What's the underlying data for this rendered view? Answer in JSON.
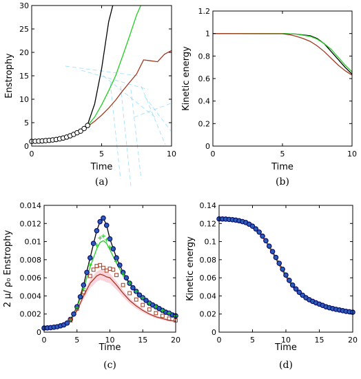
{
  "colors": {
    "black": "#000000",
    "green": "#22cc22",
    "brown": "#a0391f",
    "olive": "#8a6a00",
    "navy": "#0a0a6e",
    "blue_fill": "#2a5fb8",
    "pink_band": "#f4a0b4",
    "cyan_artifact": "#66ccff"
  },
  "chart_data": [
    {
      "id": "a",
      "type": "line",
      "panel_label": "(a)",
      "xlabel": "Time",
      "ylabel": "Enstrophy",
      "xlim": [
        0,
        10
      ],
      "ylim": [
        0,
        30
      ],
      "xticks": [
        "0",
        "5",
        "10"
      ],
      "yticks": [
        "0",
        "5",
        "10",
        "15",
        "20",
        "25",
        "30"
      ],
      "grid": false,
      "legend": "none",
      "series": [
        {
          "color": "black",
          "x": [
            0,
            1,
            2,
            3,
            3.5,
            4,
            4.5,
            5,
            5.5,
            5.8
          ],
          "y": [
            1.0,
            1.2,
            1.6,
            2.5,
            3.2,
            4.6,
            9.0,
            16.5,
            26.5,
            30.0
          ]
        },
        {
          "color": "green",
          "x": [
            0,
            1,
            2,
            3,
            3.5,
            4,
            4.5,
            5,
            5.5,
            6,
            6.5,
            7,
            7.5,
            7.8
          ],
          "y": [
            1.0,
            1.2,
            1.6,
            2.5,
            3.2,
            4.4,
            6.2,
            8.8,
            11.8,
            15.0,
            19.2,
            23.5,
            28.0,
            30.0
          ]
        },
        {
          "color": "brown",
          "x": [
            0,
            1,
            2,
            3,
            3.5,
            4,
            4.5,
            5,
            5.5,
            6,
            6.5,
            7,
            7.5,
            8,
            8.5,
            9,
            9.5,
            10
          ],
          "y": [
            1.0,
            1.2,
            1.6,
            2.5,
            3.2,
            4.2,
            5.3,
            6.6,
            8.1,
            9.8,
            11.8,
            13.6,
            15.4,
            18.4,
            18.2,
            18.0,
            19.6,
            20.4
          ]
        }
      ],
      "markers": {
        "style": "open-circle",
        "color": "black",
        "x": [
          0,
          0.25,
          0.5,
          0.75,
          1.0,
          1.25,
          1.5,
          1.75,
          2.0,
          2.25,
          2.5,
          2.75,
          3.0,
          3.25,
          3.5,
          3.75,
          4.0
        ],
        "y": [
          1.0,
          1.03,
          1.06,
          1.1,
          1.16,
          1.23,
          1.31,
          1.41,
          1.55,
          1.72,
          1.93,
          2.2,
          2.5,
          2.85,
          3.2,
          3.75,
          4.4
        ]
      }
    },
    {
      "id": "b",
      "type": "line",
      "panel_label": "(b)",
      "xlabel": "Time",
      "ylabel": "Kinetic energy",
      "xlim": [
        0,
        10
      ],
      "ylim": [
        0,
        1.2
      ],
      "xticks": [
        "0",
        "5",
        "10"
      ],
      "yticks": [
        "0",
        "0.2",
        "0.4",
        "0.6",
        "0.8",
        "1",
        "1.2"
      ],
      "grid": false,
      "legend": "none",
      "series": [
        {
          "color": "black",
          "x": [
            0,
            5,
            6,
            7,
            7.5,
            8,
            8.5,
            9,
            9.5,
            10
          ],
          "y": [
            1.0,
            1.0,
            0.995,
            0.98,
            0.955,
            0.91,
            0.84,
            0.77,
            0.7,
            0.64
          ]
        },
        {
          "color": "green",
          "x": [
            0,
            5,
            6,
            7,
            7.5,
            8,
            8.5,
            9,
            9.5,
            10
          ],
          "y": [
            1.0,
            1.0,
            0.995,
            0.975,
            0.95,
            0.91,
            0.86,
            0.79,
            0.72,
            0.66
          ]
        },
        {
          "color": "brown",
          "x": [
            0,
            5,
            5.5,
            6,
            6.5,
            7,
            7.5,
            8,
            8.5,
            9,
            9.5,
            10
          ],
          "y": [
            1.0,
            0.998,
            0.99,
            0.975,
            0.955,
            0.93,
            0.89,
            0.84,
            0.78,
            0.72,
            0.67,
            0.63
          ]
        }
      ]
    },
    {
      "id": "c",
      "type": "line",
      "panel_label": "(c)",
      "xlabel": "Time",
      "ylabel": "2 μ/ ρ₀ Enstrophy",
      "xlim": [
        0,
        20
      ],
      "ylim": [
        0,
        0.014
      ],
      "xticks": [
        "0",
        "5",
        "10",
        "15",
        "20"
      ],
      "yticks": [
        "0",
        "0.002",
        "0.004",
        "0.006",
        "0.008",
        "0.01",
        "0.012",
        "0.014"
      ],
      "grid": false,
      "legend": "none",
      "series": [
        {
          "color": "black",
          "x": [
            0,
            1,
            2,
            3,
            4,
            5,
            6,
            7,
            8,
            8.5,
            9,
            9.5,
            10,
            11,
            12,
            13,
            14,
            15,
            16,
            17,
            18,
            19,
            20
          ],
          "y": [
            0.00045,
            0.0005,
            0.0006,
            0.0008,
            0.0014,
            0.0028,
            0.0052,
            0.0082,
            0.0112,
            0.0122,
            0.0126,
            0.0118,
            0.0103,
            0.0082,
            0.0066,
            0.0054,
            0.0045,
            0.0038,
            0.0032,
            0.0028,
            0.0024,
            0.0021,
            0.0018
          ]
        },
        {
          "color": "green",
          "x": [
            0,
            1,
            2,
            3,
            4,
            5,
            6,
            7,
            8,
            8.5,
            9,
            9.5,
            10,
            11,
            12,
            13,
            14,
            15,
            16,
            17,
            18,
            19,
            20
          ],
          "y": [
            0.00045,
            0.0005,
            0.0006,
            0.0008,
            0.0014,
            0.0027,
            0.0048,
            0.0072,
            0.0092,
            0.0099,
            0.0101,
            0.0098,
            0.0091,
            0.0076,
            0.0063,
            0.0053,
            0.0044,
            0.0037,
            0.0031,
            0.0027,
            0.0023,
            0.002,
            0.0017
          ]
        },
        {
          "color": "brown",
          "x": [
            0,
            1,
            2,
            3,
            4,
            5,
            6,
            7,
            8,
            8.5,
            9,
            9.5,
            10,
            11,
            12,
            13,
            14,
            15,
            16,
            17,
            18,
            19,
            20
          ],
          "y": [
            0.00045,
            0.0005,
            0.0006,
            0.0008,
            0.0013,
            0.0024,
            0.004,
            0.0054,
            0.0062,
            0.0064,
            0.0063,
            0.0061,
            0.006,
            0.0052,
            0.0043,
            0.0035,
            0.0029,
            0.0024,
            0.002,
            0.0017,
            0.0015,
            0.0013,
            0.0012
          ]
        }
      ],
      "markers": [
        {
          "style": "filled-circle",
          "color": "navy",
          "x": [
            0,
            0.5,
            1,
            1.5,
            2,
            2.5,
            3,
            3.5,
            4,
            4.5,
            5,
            5.5,
            6,
            6.5,
            7,
            7.5,
            8,
            8.5,
            9,
            9.5,
            10,
            10.5,
            11,
            11.5,
            12,
            12.5,
            13,
            13.5,
            14,
            14.5,
            15,
            15.5,
            16,
            16.5,
            17,
            17.5,
            18,
            18.5,
            19,
            19.5,
            20
          ],
          "y": [
            0.00045,
            0.00047,
            0.0005,
            0.00055,
            0.0006,
            0.0007,
            0.0008,
            0.001,
            0.0014,
            0.002,
            0.0028,
            0.0039,
            0.0052,
            0.0066,
            0.0082,
            0.0098,
            0.0112,
            0.0122,
            0.0126,
            0.0118,
            0.0103,
            0.0092,
            0.0082,
            0.0074,
            0.0066,
            0.006,
            0.0054,
            0.0049,
            0.0045,
            0.0041,
            0.0038,
            0.0035,
            0.0032,
            0.003,
            0.0028,
            0.0026,
            0.0024,
            0.0022,
            0.0021,
            0.0019,
            0.0018
          ]
        },
        {
          "style": "plus",
          "color": "green",
          "x": [
            4,
            5,
            6,
            7,
            8,
            8.5,
            9,
            9.5,
            10,
            11,
            12,
            13,
            14,
            15,
            16,
            17,
            18,
            19,
            20
          ],
          "y": [
            0.0014,
            0.0027,
            0.0048,
            0.0074,
            0.0096,
            0.0104,
            0.0106,
            0.0102,
            0.0094,
            0.0078,
            0.0064,
            0.0054,
            0.0045,
            0.0038,
            0.0032,
            0.0028,
            0.0024,
            0.0021,
            0.0018
          ]
        },
        {
          "style": "open-square",
          "color": "brown",
          "x": [
            4,
            5,
            6,
            7,
            7.5,
            8,
            8.5,
            9,
            9.5,
            10,
            10.5,
            11,
            12,
            13,
            14,
            15,
            16,
            17,
            18,
            19,
            20
          ],
          "y": [
            0.0013,
            0.0026,
            0.0044,
            0.0062,
            0.0069,
            0.0073,
            0.0074,
            0.0071,
            0.0068,
            0.007,
            0.0069,
            0.0063,
            0.0052,
            0.0043,
            0.0036,
            0.003,
            0.0025,
            0.0021,
            0.0018,
            0.0015,
            0.0013
          ]
        }
      ]
    },
    {
      "id": "d",
      "type": "line",
      "panel_label": "(d)",
      "xlabel": "Time",
      "ylabel": "Kinetic energy",
      "xlim": [
        0,
        20
      ],
      "ylim": [
        0,
        0.14
      ],
      "xticks": [
        "0",
        "5",
        "10",
        "15",
        "20"
      ],
      "yticks": [
        "0",
        "0.02",
        "0.04",
        "0.06",
        "0.08",
        "0.1",
        "0.12",
        "0.14"
      ],
      "grid": false,
      "legend": "none",
      "series": [
        {
          "color": "black",
          "x": [
            0,
            1,
            2,
            3,
            4,
            5,
            6,
            7,
            8,
            9,
            10,
            11,
            12,
            13,
            14,
            15,
            16,
            17,
            18,
            19,
            20
          ],
          "y": [
            0.125,
            0.1248,
            0.1242,
            0.123,
            0.121,
            0.117,
            0.1105,
            0.101,
            0.089,
            0.076,
            0.063,
            0.052,
            0.044,
            0.038,
            0.034,
            0.031,
            0.028,
            0.026,
            0.0245,
            0.023,
            0.022
          ]
        },
        {
          "color": "green",
          "x": [
            0,
            1,
            2,
            3,
            4,
            5,
            6,
            7,
            8,
            9,
            10,
            11,
            12,
            13,
            14,
            15,
            16,
            17,
            18,
            19,
            20
          ],
          "y": [
            0.125,
            0.1248,
            0.1242,
            0.123,
            0.121,
            0.117,
            0.1105,
            0.1008,
            0.0885,
            0.0752,
            0.0622,
            0.0512,
            0.0432,
            0.0372,
            0.0332,
            0.0302,
            0.0275,
            0.0255,
            0.0238,
            0.0224,
            0.0212
          ]
        },
        {
          "color": "brown",
          "x": [
            0,
            1,
            2,
            3,
            4,
            5,
            6,
            7,
            8,
            9,
            10,
            11,
            12,
            13,
            14,
            15,
            16,
            17,
            18,
            19,
            20
          ],
          "y": [
            0.125,
            0.1248,
            0.1242,
            0.123,
            0.121,
            0.117,
            0.11,
            0.1,
            0.0875,
            0.074,
            0.061,
            0.05,
            0.042,
            0.036,
            0.032,
            0.029,
            0.0265,
            0.0245,
            0.0228,
            0.0214,
            0.0202
          ]
        }
      ],
      "markers": [
        {
          "style": "filled-circle",
          "color": "navy",
          "x": [
            0,
            0.5,
            1,
            1.5,
            2,
            2.5,
            3,
            3.5,
            4,
            4.5,
            5,
            5.5,
            6,
            6.5,
            7,
            7.5,
            8,
            8.5,
            9,
            9.5,
            10,
            10.5,
            11,
            11.5,
            12,
            12.5,
            13,
            13.5,
            14,
            14.5,
            15,
            15.5,
            16,
            16.5,
            17,
            17.5,
            18,
            18.5,
            19,
            19.5,
            20
          ],
          "y": [
            0.125,
            0.1249,
            0.1248,
            0.1245,
            0.1242,
            0.1237,
            0.123,
            0.1221,
            0.121,
            0.1192,
            0.117,
            0.114,
            0.1105,
            0.106,
            0.101,
            0.095,
            0.089,
            0.0825,
            0.076,
            0.0695,
            0.063,
            0.0572,
            0.052,
            0.0477,
            0.044,
            0.0408,
            0.038,
            0.0358,
            0.034,
            0.0324,
            0.031,
            0.0295,
            0.028,
            0.027,
            0.026,
            0.0252,
            0.0245,
            0.0237,
            0.023,
            0.0225,
            0.022
          ]
        }
      ]
    }
  ]
}
